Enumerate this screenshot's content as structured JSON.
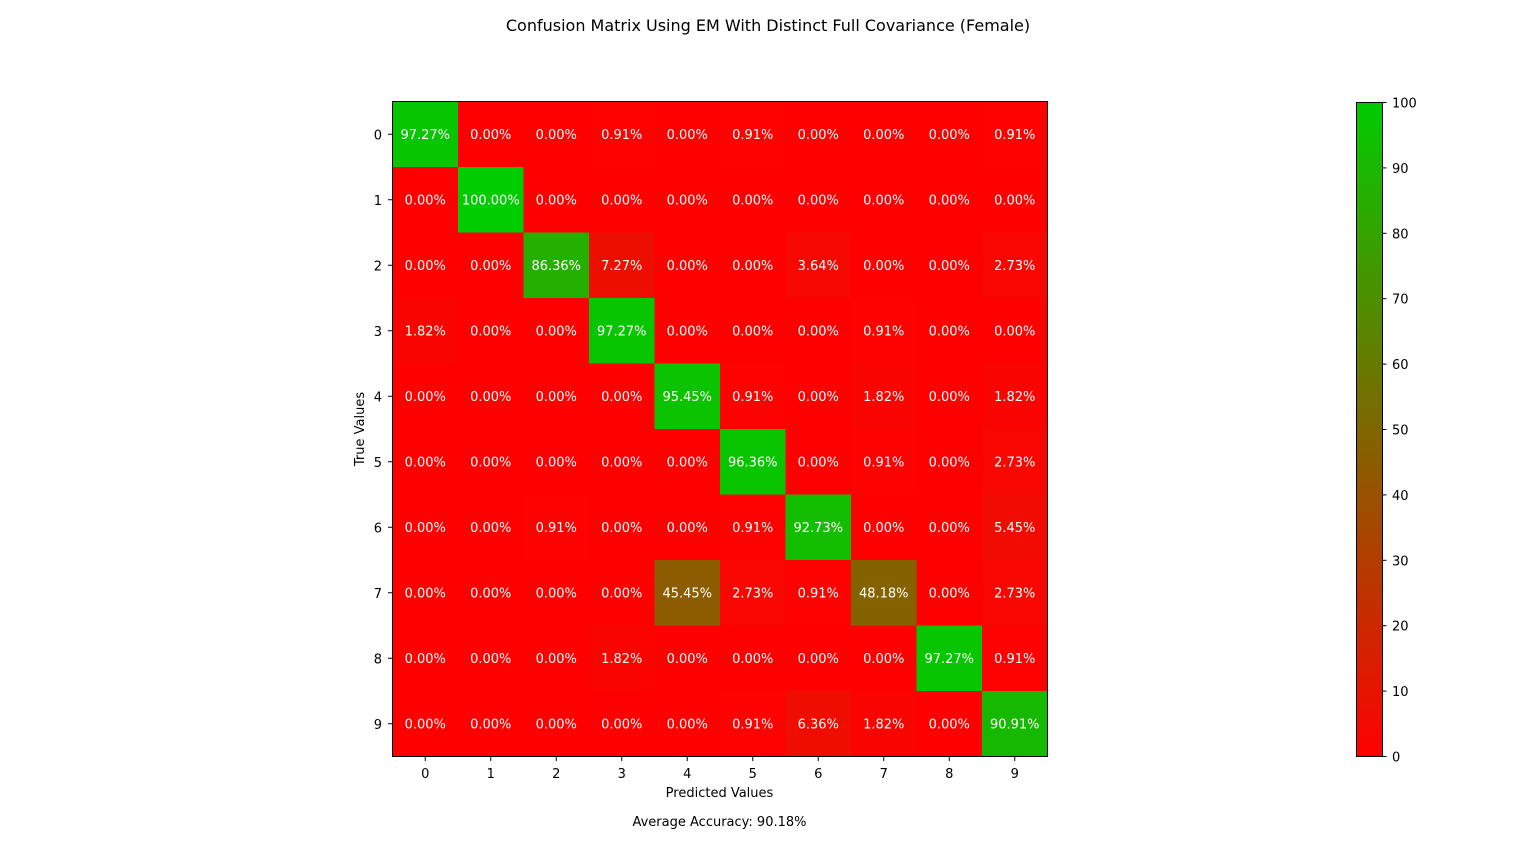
{
  "chart_data": {
    "type": "heatmap",
    "title": "Confusion Matrix Using EM With Distinct Full Covariance (Female)",
    "xlabel": "Predicted Values",
    "ylabel": "True Values",
    "x_categories": [
      "0",
      "1",
      "2",
      "3",
      "4",
      "5",
      "6",
      "7",
      "8",
      "9"
    ],
    "y_categories": [
      "0",
      "1",
      "2",
      "3",
      "4",
      "5",
      "6",
      "7",
      "8",
      "9"
    ],
    "values": [
      [
        97.27,
        0.0,
        0.0,
        0.91,
        0.0,
        0.91,
        0.0,
        0.0,
        0.0,
        0.91
      ],
      [
        0.0,
        100.0,
        0.0,
        0.0,
        0.0,
        0.0,
        0.0,
        0.0,
        0.0,
        0.0
      ],
      [
        0.0,
        0.0,
        86.36,
        7.27,
        0.0,
        0.0,
        3.64,
        0.0,
        0.0,
        2.73
      ],
      [
        1.82,
        0.0,
        0.0,
        97.27,
        0.0,
        0.0,
        0.0,
        0.91,
        0.0,
        0.0
      ],
      [
        0.0,
        0.0,
        0.0,
        0.0,
        95.45,
        0.91,
        0.0,
        1.82,
        0.0,
        1.82
      ],
      [
        0.0,
        0.0,
        0.0,
        0.0,
        0.0,
        96.36,
        0.0,
        0.91,
        0.0,
        2.73
      ],
      [
        0.0,
        0.0,
        0.91,
        0.0,
        0.0,
        0.91,
        92.73,
        0.0,
        0.0,
        5.45
      ],
      [
        0.0,
        0.0,
        0.0,
        0.0,
        45.45,
        2.73,
        0.91,
        48.18,
        0.0,
        2.73
      ],
      [
        0.0,
        0.0,
        0.0,
        1.82,
        0.0,
        0.0,
        0.0,
        0.0,
        97.27,
        0.91
      ],
      [
        0.0,
        0.0,
        0.0,
        0.0,
        0.0,
        0.91,
        6.36,
        1.82,
        0.0,
        90.91
      ]
    ],
    "value_suffix": "%",
    "colorbar": {
      "range": [
        0,
        100
      ],
      "ticks": [
        "0",
        "10",
        "20",
        "30",
        "40",
        "50",
        "60",
        "70",
        "80",
        "90",
        "100"
      ],
      "low_color": "#ff0000",
      "high_color": "#00cc00"
    },
    "footer": "Average Accuracy: 90.18%"
  }
}
